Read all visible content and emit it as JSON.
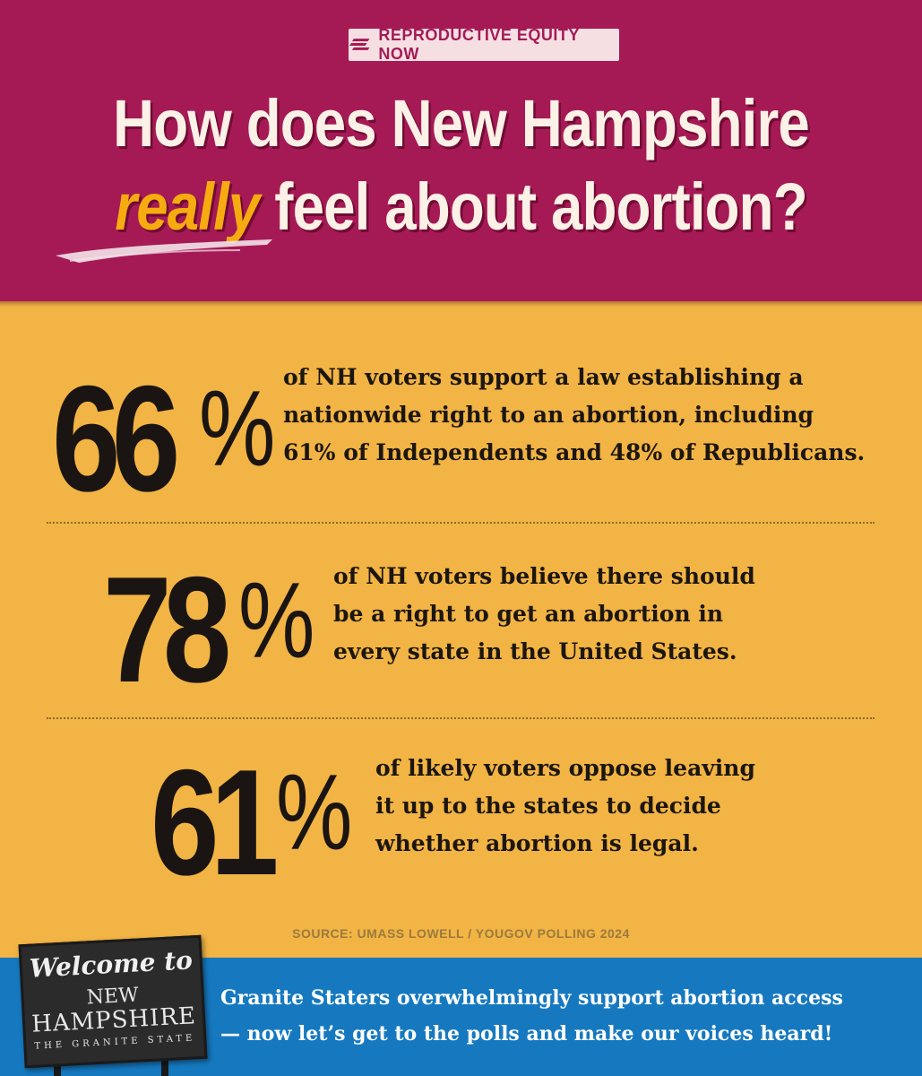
{
  "badge": {
    "label": "REPRODUCTIVE EQUITY NOW",
    "icon": "stripes-logo-icon"
  },
  "title": {
    "line1": "How does New Hampshire",
    "emphasis": "really",
    "line2_rest": " feel about abortion?"
  },
  "stats": [
    {
      "number": "66",
      "percent_sign": "%",
      "lines": [
        "of NH voters support a law establishing a",
        "nationwide right to an abortion, including",
        "61% of Independents and 48% of Republicans."
      ]
    },
    {
      "number": "78",
      "percent_sign": "%",
      "lines": [
        "of NH voters believe there should",
        "be a right to get an abortion in",
        "every state in the United States."
      ]
    },
    {
      "number": "61",
      "percent_sign": "%",
      "lines": [
        "of likely voters oppose leaving",
        "it up to the states to decide",
        "whether abortion is legal."
      ]
    }
  ],
  "source": "SOURCE: UMASS LOWELL / YOUGOV POLLING 2024",
  "sign": {
    "welcome": "Welcome to",
    "new": "NEW",
    "state": "HAMPSHIRE",
    "tagline": "THE GRANITE STATE"
  },
  "footer": {
    "line1": "Granite Staters overwhelmingly support abortion access",
    "line2": "— now let’s get to the polls and make our voices heard!"
  },
  "colors": {
    "header_bg": "#a51a55",
    "body_bg": "#f2b444",
    "footer_bg": "#1679c0",
    "accent": "#f6ac10"
  }
}
